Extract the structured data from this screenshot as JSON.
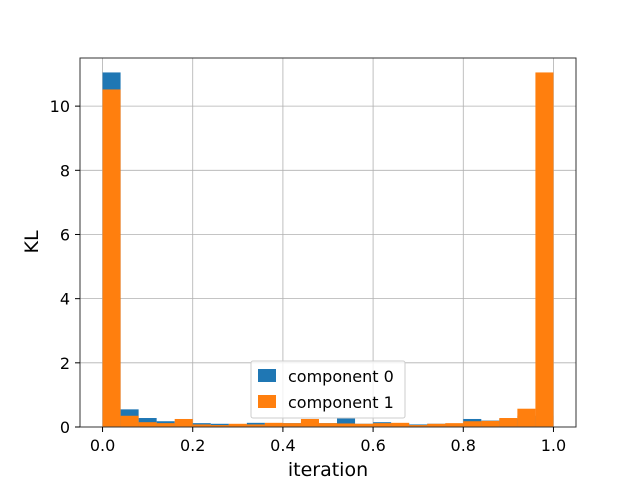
{
  "chart_data": {
    "type": "bar",
    "subtype": "histogram-overlay",
    "title": "",
    "xlabel": "iteration",
    "ylabel": "KL",
    "xlim": [
      -0.05,
      1.05
    ],
    "ylim": [
      0,
      11.5
    ],
    "xticks": [
      0.0,
      0.2,
      0.4,
      0.6,
      0.8,
      1.0
    ],
    "xtick_labels": [
      "0.0",
      "0.2",
      "0.4",
      "0.6",
      "0.8",
      "1.0"
    ],
    "yticks": [
      0,
      2,
      4,
      6,
      8,
      10
    ],
    "ytick_labels": [
      "0",
      "2",
      "4",
      "6",
      "8",
      "10"
    ],
    "grid": true,
    "legend_position": "lower center",
    "bin_edges": [
      0.0,
      0.04,
      0.08,
      0.12,
      0.16,
      0.2,
      0.24,
      0.28,
      0.32,
      0.36,
      0.4,
      0.44,
      0.48,
      0.52,
      0.56,
      0.6,
      0.64,
      0.68,
      0.72,
      0.76,
      0.8,
      0.84,
      0.88,
      0.92,
      0.96,
      1.0
    ],
    "series": [
      {
        "name": "component 0",
        "color": "#1f77b4",
        "values": [
          11.05,
          0.55,
          0.28,
          0.18,
          0.13,
          0.12,
          0.1,
          0.08,
          0.13,
          0.1,
          0.12,
          0.14,
          0.12,
          0.27,
          0.1,
          0.15,
          0.12,
          0.08,
          0.1,
          0.1,
          0.25,
          0.2,
          0.26,
          0.35,
          0.35
        ]
      },
      {
        "name": "component 1",
        "color": "#ff7f0e",
        "values": [
          10.52,
          0.35,
          0.15,
          0.12,
          0.25,
          0.08,
          0.06,
          0.1,
          0.08,
          0.13,
          0.12,
          0.25,
          0.12,
          0.11,
          0.1,
          0.12,
          0.13,
          0.06,
          0.1,
          0.12,
          0.18,
          0.19,
          0.28,
          0.57,
          11.05
        ]
      }
    ]
  }
}
